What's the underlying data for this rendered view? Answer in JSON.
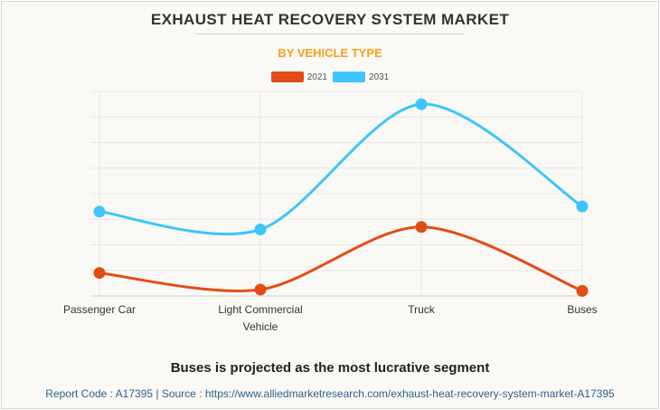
{
  "header": {
    "title": "EXHAUST HEAT RECOVERY SYSTEM MARKET",
    "subtitle": "BY VEHICLE TYPE"
  },
  "legend": [
    {
      "label": "2021",
      "color": "#e34d15"
    },
    {
      "label": "2031",
      "color": "#3dc5ff"
    }
  ],
  "chart_data": {
    "type": "line",
    "title": "EXHAUST HEAT RECOVERY SYSTEM MARKET",
    "subtitle": "BY VEHICLE TYPE",
    "categories": [
      "Passenger Car",
      "Light Commercial Vehicle",
      "Truck",
      "Buses"
    ],
    "category_label_lines": [
      [
        "Passenger Car"
      ],
      [
        "Light Commercial",
        "Vehicle"
      ],
      [
        "Truck"
      ],
      [
        "Buses"
      ]
    ],
    "series": [
      {
        "name": "2021",
        "color": "#e34d15",
        "values": [
          0.9,
          0.25,
          2.7,
          0.2
        ]
      },
      {
        "name": "2031",
        "color": "#3dc5ff",
        "values": [
          3.3,
          2.6,
          7.5,
          3.5
        ]
      }
    ],
    "ylim": [
      0,
      8
    ],
    "y_gridlines": 8,
    "y_tick_labels_shown": false,
    "smooth": true,
    "xlabel": "",
    "ylabel": ""
  },
  "footer": {
    "headline": "Buses is projected as the most lucrative segment",
    "source": "Report Code : A17395  |  Source : https://www.alliedmarketresearch.com/exhaust-heat-recovery-system-market-A17395"
  }
}
